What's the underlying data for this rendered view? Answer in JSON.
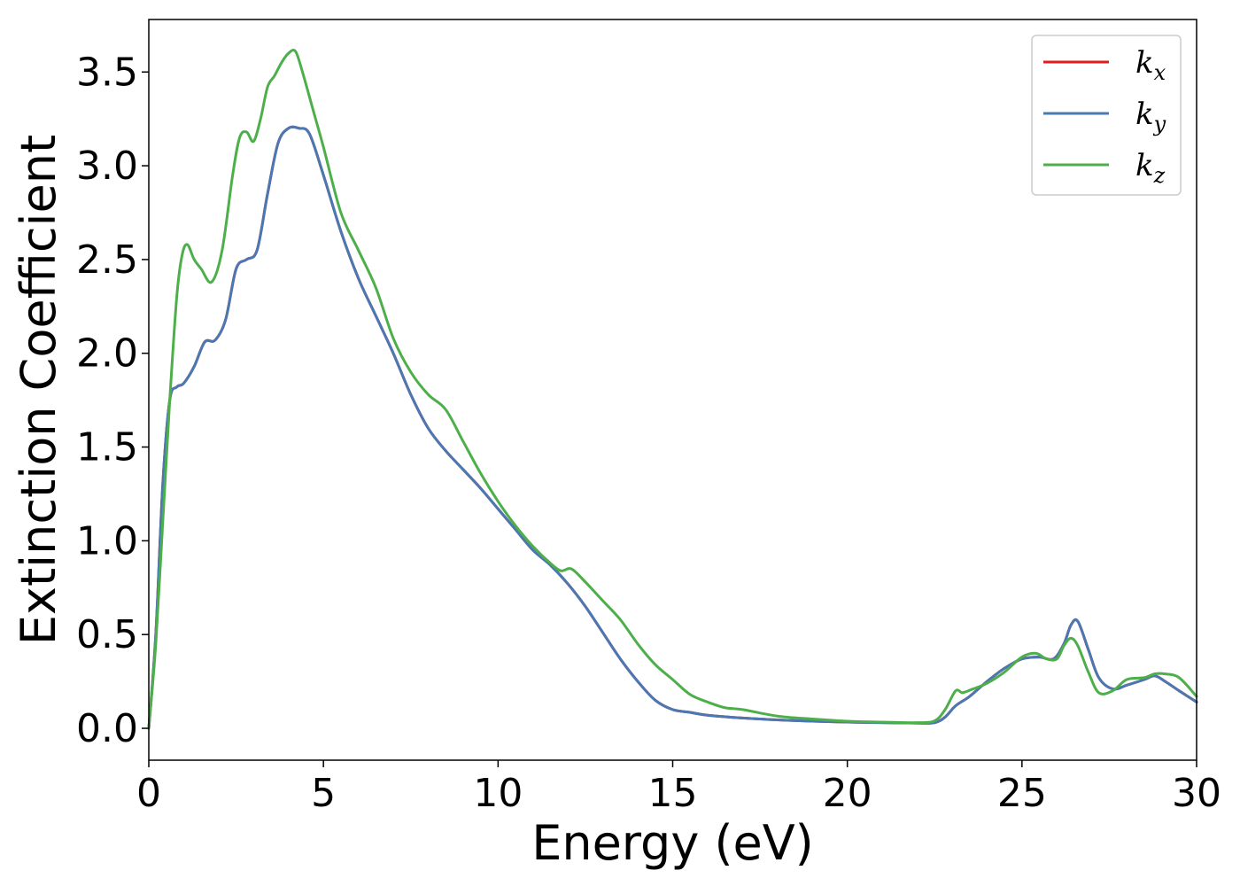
{
  "chart_data": {
    "type": "line",
    "xlabel": "Energy (eV)",
    "ylabel": "Extinction Coefficient",
    "xlim": [
      0,
      30
    ],
    "ylim": [
      -0.17,
      3.78
    ],
    "xticks": [
      0,
      5,
      10,
      15,
      20,
      25,
      30
    ],
    "xtick_labels": [
      "0",
      "5",
      "10",
      "15",
      "20",
      "25",
      "30"
    ],
    "yticks": [
      0.0,
      0.5,
      1.0,
      1.5,
      2.0,
      2.5,
      3.0,
      3.5
    ],
    "ytick_labels": [
      "0.0",
      "0.5",
      "1.0",
      "1.5",
      "2.0",
      "2.5",
      "3.0",
      "3.5"
    ],
    "grid": false,
    "legend_position": "top-right",
    "series": [
      {
        "name": "k_x",
        "label_main": "k",
        "label_sub": "x",
        "color": "#e41a1c",
        "x": [
          0,
          0.2,
          0.4,
          0.6,
          0.8,
          1.0,
          1.3,
          1.6,
          1.9,
          2.2,
          2.5,
          2.8,
          3.1,
          3.4,
          3.7,
          4.0,
          4.3,
          4.6,
          5.0,
          5.5,
          6.0,
          6.5,
          7.0,
          7.5,
          8.0,
          8.5,
          9.0,
          9.5,
          10.0,
          10.5,
          11.0,
          11.5,
          12.0,
          12.5,
          13.0,
          13.5,
          14.0,
          14.5,
          15.0,
          15.5,
          16.0,
          17.0,
          18.0,
          19.0,
          20.0,
          21.0,
          22.0,
          22.5,
          22.8,
          23.1,
          23.5,
          24.0,
          24.5,
          25.0,
          25.5,
          25.9,
          26.2,
          26.4,
          26.6,
          26.9,
          27.2,
          27.6,
          28.0,
          28.5,
          28.8,
          29.1,
          29.5,
          30.0
        ],
        "y": [
          0.0,
          0.5,
          1.3,
          1.75,
          1.82,
          1.84,
          1.93,
          2.06,
          2.07,
          2.18,
          2.45,
          2.5,
          2.55,
          2.85,
          3.12,
          3.2,
          3.2,
          3.17,
          2.95,
          2.65,
          2.4,
          2.2,
          2.0,
          1.78,
          1.6,
          1.48,
          1.38,
          1.28,
          1.17,
          1.06,
          0.95,
          0.87,
          0.77,
          0.65,
          0.51,
          0.37,
          0.25,
          0.15,
          0.1,
          0.085,
          0.07,
          0.055,
          0.045,
          0.038,
          0.033,
          0.03,
          0.028,
          0.03,
          0.06,
          0.12,
          0.17,
          0.25,
          0.32,
          0.37,
          0.38,
          0.37,
          0.45,
          0.55,
          0.57,
          0.42,
          0.27,
          0.21,
          0.23,
          0.26,
          0.28,
          0.25,
          0.2,
          0.14
        ]
      },
      {
        "name": "k_y",
        "label_main": "k",
        "label_sub": "y",
        "color": "#4a78b2",
        "x": [
          0,
          0.2,
          0.4,
          0.6,
          0.8,
          1.0,
          1.3,
          1.6,
          1.9,
          2.2,
          2.5,
          2.8,
          3.1,
          3.4,
          3.7,
          4.0,
          4.3,
          4.6,
          5.0,
          5.5,
          6.0,
          6.5,
          7.0,
          7.5,
          8.0,
          8.5,
          9.0,
          9.5,
          10.0,
          10.5,
          11.0,
          11.5,
          12.0,
          12.5,
          13.0,
          13.5,
          14.0,
          14.5,
          15.0,
          15.5,
          16.0,
          17.0,
          18.0,
          19.0,
          20.0,
          21.0,
          22.0,
          22.5,
          22.8,
          23.1,
          23.5,
          24.0,
          24.5,
          25.0,
          25.5,
          25.9,
          26.2,
          26.4,
          26.6,
          26.9,
          27.2,
          27.6,
          28.0,
          28.5,
          28.8,
          29.1,
          29.5,
          30.0
        ],
        "y": [
          0.0,
          0.5,
          1.3,
          1.75,
          1.82,
          1.84,
          1.93,
          2.06,
          2.07,
          2.18,
          2.45,
          2.5,
          2.55,
          2.85,
          3.12,
          3.2,
          3.2,
          3.17,
          2.95,
          2.65,
          2.4,
          2.2,
          2.0,
          1.78,
          1.6,
          1.48,
          1.38,
          1.28,
          1.17,
          1.06,
          0.95,
          0.87,
          0.77,
          0.65,
          0.51,
          0.37,
          0.25,
          0.15,
          0.1,
          0.085,
          0.07,
          0.055,
          0.045,
          0.038,
          0.033,
          0.03,
          0.028,
          0.03,
          0.06,
          0.12,
          0.17,
          0.25,
          0.32,
          0.37,
          0.38,
          0.37,
          0.45,
          0.55,
          0.57,
          0.42,
          0.27,
          0.21,
          0.23,
          0.26,
          0.28,
          0.25,
          0.2,
          0.14
        ]
      },
      {
        "name": "k_z",
        "label_main": "k",
        "label_sub": "z",
        "color": "#4daf4a",
        "x": [
          0,
          0.2,
          0.4,
          0.6,
          0.8,
          0.95,
          1.1,
          1.3,
          1.5,
          1.8,
          2.1,
          2.4,
          2.6,
          2.8,
          3.0,
          3.2,
          3.4,
          3.6,
          3.8,
          4.0,
          4.2,
          4.4,
          4.7,
          5.0,
          5.5,
          6.0,
          6.5,
          7.0,
          7.5,
          8.0,
          8.5,
          9.0,
          9.5,
          10.0,
          10.5,
          11.0,
          11.5,
          11.8,
          12.1,
          12.5,
          13.0,
          13.5,
          14.0,
          14.5,
          15.0,
          15.5,
          16.0,
          16.5,
          17.0,
          18.0,
          19.0,
          20.0,
          21.0,
          22.0,
          22.5,
          22.8,
          23.1,
          23.3,
          23.6,
          24.0,
          24.5,
          25.0,
          25.4,
          25.7,
          26.0,
          26.2,
          26.4,
          26.6,
          26.9,
          27.2,
          27.6,
          28.0,
          28.5,
          28.8,
          29.1,
          29.5,
          30.0
        ],
        "y": [
          0.0,
          0.45,
          1.1,
          1.75,
          2.3,
          2.52,
          2.58,
          2.5,
          2.45,
          2.38,
          2.55,
          2.95,
          3.15,
          3.18,
          3.13,
          3.25,
          3.42,
          3.48,
          3.55,
          3.6,
          3.61,
          3.5,
          3.3,
          3.1,
          2.75,
          2.55,
          2.35,
          2.08,
          1.9,
          1.78,
          1.7,
          1.53,
          1.36,
          1.21,
          1.08,
          0.97,
          0.88,
          0.84,
          0.85,
          0.78,
          0.68,
          0.58,
          0.45,
          0.34,
          0.26,
          0.18,
          0.14,
          0.11,
          0.1,
          0.065,
          0.05,
          0.038,
          0.033,
          0.03,
          0.04,
          0.1,
          0.2,
          0.19,
          0.21,
          0.24,
          0.3,
          0.38,
          0.4,
          0.37,
          0.37,
          0.44,
          0.48,
          0.44,
          0.3,
          0.19,
          0.2,
          0.26,
          0.27,
          0.29,
          0.29,
          0.27,
          0.17
        ]
      }
    ]
  }
}
